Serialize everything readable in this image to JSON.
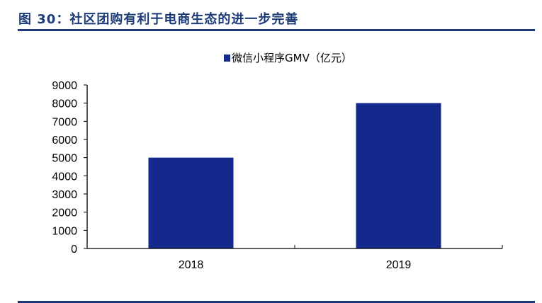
{
  "figure_title": "图 30：社区团购有利于电商生态的进一步完善",
  "chart_data": {
    "type": "bar",
    "title": "",
    "categories": [
      "2018",
      "2019"
    ],
    "series": [
      {
        "name": "微信小程序GMV（亿元）",
        "values": [
          5000,
          8000
        ],
        "color": "#132a8c"
      }
    ],
    "xlabel": "",
    "ylabel": "",
    "ylim": [
      0,
      9000
    ],
    "yticks": [
      0,
      1000,
      2000,
      3000,
      4000,
      5000,
      6000,
      7000,
      8000,
      9000
    ],
    "grid": false,
    "legend_position": "top-center"
  }
}
